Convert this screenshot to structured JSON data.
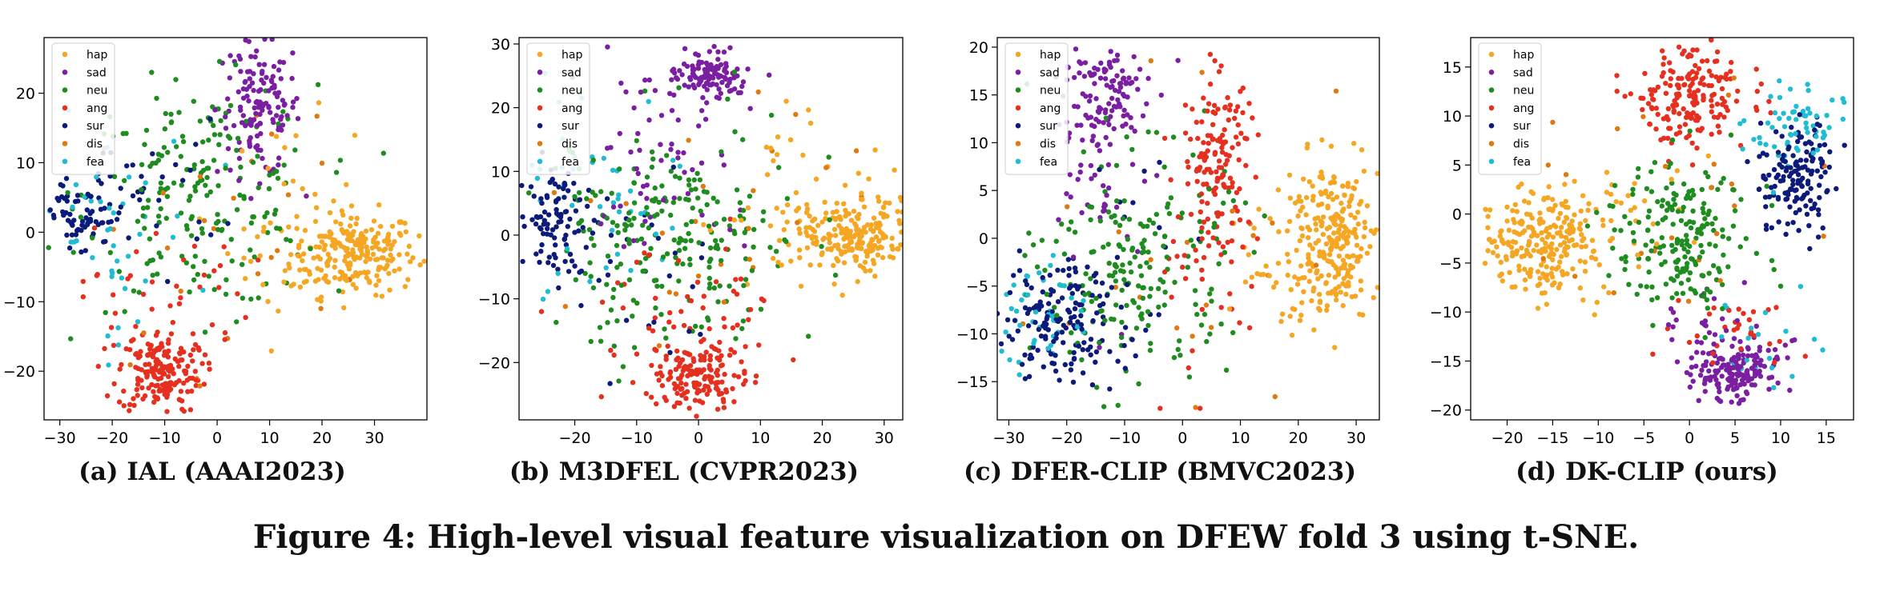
{
  "figure_caption": "Figure 4: High-level visual feature visualization on DFEW fold 3 using t-SNE.",
  "colors": {
    "hap": "#f5a623",
    "sad": "#7b1fa2",
    "neu": "#1f8c1f",
    "ang": "#e53020",
    "sur": "#0c1a7a",
    "dis": "#e07a10",
    "fea": "#1fbcd2"
  },
  "chart_data": [
    {
      "type": "scatter",
      "caption": "(a) IAL (AAAI2023)",
      "xlim": [
        -33,
        40
      ],
      "ylim": [
        -27,
        28
      ],
      "xticks": [
        -30,
        -20,
        -10,
        0,
        10,
        20,
        30
      ],
      "yticks": [
        -20,
        -10,
        0,
        10,
        20
      ],
      "grid": false,
      "legend": {
        "position": "top-left",
        "entries": [
          "hap",
          "sad",
          "neu",
          "ang",
          "sur",
          "dis",
          "fea"
        ]
      },
      "clusters": [
        {
          "label": "hap",
          "center": [
            26,
            -3
          ],
          "spread": [
            6,
            3
          ],
          "count": 230
        },
        {
          "label": "hap",
          "center": [
            14,
            0
          ],
          "spread": [
            6,
            8
          ],
          "count": 40
        },
        {
          "label": "sad",
          "center": [
            8,
            18
          ],
          "spread": [
            4,
            5
          ],
          "count": 140
        },
        {
          "label": "neu",
          "center": [
            -3,
            5
          ],
          "spread": [
            11,
            8
          ],
          "count": 200
        },
        {
          "label": "ang",
          "center": [
            -11,
            -20
          ],
          "spread": [
            4,
            3
          ],
          "count": 180
        },
        {
          "label": "ang",
          "center": [
            -10,
            -9
          ],
          "spread": [
            8,
            5
          ],
          "count": 40
        },
        {
          "label": "sur",
          "center": [
            -26,
            2
          ],
          "spread": [
            4,
            3
          ],
          "count": 70
        },
        {
          "label": "sur",
          "center": [
            -13,
            6
          ],
          "spread": [
            7,
            5
          ],
          "count": 30
        },
        {
          "label": "dis",
          "center": [
            5,
            0
          ],
          "spread": [
            14,
            10
          ],
          "count": 25
        },
        {
          "label": "fea",
          "center": [
            -22,
            0
          ],
          "spread": [
            9,
            8
          ],
          "count": 45
        }
      ]
    },
    {
      "type": "scatter",
      "caption": "(b) M3DFEL (CVPR2023)",
      "xlim": [
        -29,
        33
      ],
      "ylim": [
        -29,
        31
      ],
      "xticks": [
        -20,
        -10,
        0,
        10,
        20,
        30
      ],
      "yticks": [
        -20,
        -10,
        0,
        10,
        20,
        30
      ],
      "grid": false,
      "legend": {
        "position": "top-left",
        "entries": [
          "hap",
          "sad",
          "neu",
          "ang",
          "sur",
          "dis",
          "fea"
        ]
      },
      "clusters": [
        {
          "label": "hap",
          "center": [
            25,
            0
          ],
          "spread": [
            5,
            3
          ],
          "count": 220
        },
        {
          "label": "hap",
          "center": [
            14,
            2
          ],
          "spread": [
            6,
            7
          ],
          "count": 40
        },
        {
          "label": "sad",
          "center": [
            2,
            25
          ],
          "spread": [
            3,
            2
          ],
          "count": 110
        },
        {
          "label": "sad",
          "center": [
            -6,
            12
          ],
          "spread": [
            7,
            7
          ],
          "count": 60
        },
        {
          "label": "neu",
          "center": [
            -4,
            0
          ],
          "spread": [
            10,
            9
          ],
          "count": 230
        },
        {
          "label": "ang",
          "center": [
            0,
            -22
          ],
          "spread": [
            4,
            3
          ],
          "count": 170
        },
        {
          "label": "ang",
          "center": [
            -3,
            -12
          ],
          "spread": [
            8,
            5
          ],
          "count": 40
        },
        {
          "label": "sur",
          "center": [
            -23,
            3
          ],
          "spread": [
            3,
            4
          ],
          "count": 90
        },
        {
          "label": "sur",
          "center": [
            -10,
            -5
          ],
          "spread": [
            8,
            10
          ],
          "count": 30
        },
        {
          "label": "dis",
          "center": [
            5,
            2
          ],
          "spread": [
            14,
            10
          ],
          "count": 25
        },
        {
          "label": "fea",
          "center": [
            -18,
            8
          ],
          "spread": [
            8,
            7
          ],
          "count": 45
        }
      ]
    },
    {
      "type": "scatter",
      "caption": "(c) DFER-CLIP (BMVC2023)",
      "xlim": [
        -32,
        34
      ],
      "ylim": [
        -19,
        21
      ],
      "xticks": [
        -30,
        -20,
        -10,
        0,
        10,
        20,
        30
      ],
      "yticks": [
        -15,
        -10,
        -5,
        0,
        5,
        10,
        15,
        20
      ],
      "grid": false,
      "legend": {
        "position": "top-left",
        "entries": [
          "hap",
          "sad",
          "neu",
          "ang",
          "sur",
          "dis",
          "fea"
        ]
      },
      "clusters": [
        {
          "label": "hap",
          "center": [
            26,
            0
          ],
          "spread": [
            4,
            4
          ],
          "count": 240
        },
        {
          "label": "hap",
          "center": [
            17,
            -2
          ],
          "spread": [
            5,
            4
          ],
          "count": 40
        },
        {
          "label": "sad",
          "center": [
            -14,
            15
          ],
          "spread": [
            4,
            3
          ],
          "count": 110
        },
        {
          "label": "sad",
          "center": [
            -13,
            5
          ],
          "spread": [
            4,
            6
          ],
          "count": 40
        },
        {
          "label": "neu",
          "center": [
            -8,
            -3
          ],
          "spread": [
            8,
            6
          ],
          "count": 200
        },
        {
          "label": "ang",
          "center": [
            6,
            9
          ],
          "spread": [
            3,
            4
          ],
          "count": 130
        },
        {
          "label": "ang",
          "center": [
            4,
            -4
          ],
          "spread": [
            6,
            5
          ],
          "count": 40
        },
        {
          "label": "sur",
          "center": [
            -22,
            -9
          ],
          "spread": [
            6,
            3
          ],
          "count": 160
        },
        {
          "label": "sur",
          "center": [
            -12,
            0
          ],
          "spread": [
            6,
            6
          ],
          "count": 20
        },
        {
          "label": "dis",
          "center": [
            -2,
            -2
          ],
          "spread": [
            14,
            8
          ],
          "count": 25
        },
        {
          "label": "fea",
          "center": [
            -26,
            -8
          ],
          "spread": [
            4,
            3
          ],
          "count": 45
        }
      ]
    },
    {
      "type": "scatter",
      "caption": "(d) DK-CLIP (ours)",
      "xlim": [
        -24,
        18
      ],
      "ylim": [
        -21,
        18
      ],
      "xticks": [
        -20,
        -15,
        -10,
        -5,
        0,
        5,
        10,
        15
      ],
      "yticks": [
        -20,
        -15,
        -10,
        -5,
        0,
        5,
        10,
        15
      ],
      "grid": false,
      "legend": {
        "position": "top-left",
        "entries": [
          "hap",
          "sad",
          "neu",
          "ang",
          "sur",
          "dis",
          "fea"
        ]
      },
      "clusters": [
        {
          "label": "hap",
          "center": [
            -16,
            -3
          ],
          "spread": [
            3,
            2.5
          ],
          "count": 230
        },
        {
          "label": "hap",
          "center": [
            -8,
            0
          ],
          "spread": [
            4,
            3
          ],
          "count": 30
        },
        {
          "label": "sad",
          "center": [
            5,
            -16
          ],
          "spread": [
            2.5,
            1.5
          ],
          "count": 150
        },
        {
          "label": "sad",
          "center": [
            3,
            -12
          ],
          "spread": [
            3,
            2
          ],
          "count": 30
        },
        {
          "label": "neu",
          "center": [
            -1,
            -2
          ],
          "spread": [
            4,
            4
          ],
          "count": 200
        },
        {
          "label": "ang",
          "center": [
            0,
            12
          ],
          "spread": [
            3,
            2.5
          ],
          "count": 180
        },
        {
          "label": "ang",
          "center": [
            4,
            -12
          ],
          "spread": [
            3,
            2
          ],
          "count": 30
        },
        {
          "label": "sur",
          "center": [
            12,
            4
          ],
          "spread": [
            2,
            3
          ],
          "count": 150
        },
        {
          "label": "dis",
          "center": [
            0,
            0
          ],
          "spread": [
            8,
            8
          ],
          "count": 25
        },
        {
          "label": "fea",
          "center": [
            12,
            9
          ],
          "spread": [
            2.5,
            2
          ],
          "count": 60
        },
        {
          "label": "fea",
          "center": [
            8,
            -14
          ],
          "spread": [
            3,
            2
          ],
          "count": 20
        }
      ]
    }
  ]
}
